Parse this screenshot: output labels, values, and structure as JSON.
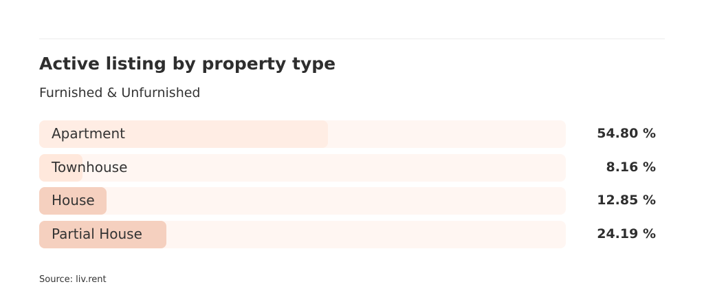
{
  "chart_data": {
    "type": "bar",
    "orientation": "horizontal",
    "title": "Active listing by property type",
    "subtitle": "Furnished & Unfurnished",
    "categories": [
      "Apartment",
      "Townhouse",
      "House",
      "Partial House"
    ],
    "values": [
      54.8,
      8.16,
      12.85,
      24.19
    ],
    "value_labels": [
      "54.80 %",
      "8.16 %",
      "12.85 %",
      "24.19 %"
    ],
    "xlim": [
      0,
      100
    ],
    "colors": [
      "#ffede4",
      "#ffe8dc",
      "#f5d0bf",
      "#f5d0bf"
    ],
    "track_color": "#fff6f2",
    "source": "Source: liv.rent"
  }
}
